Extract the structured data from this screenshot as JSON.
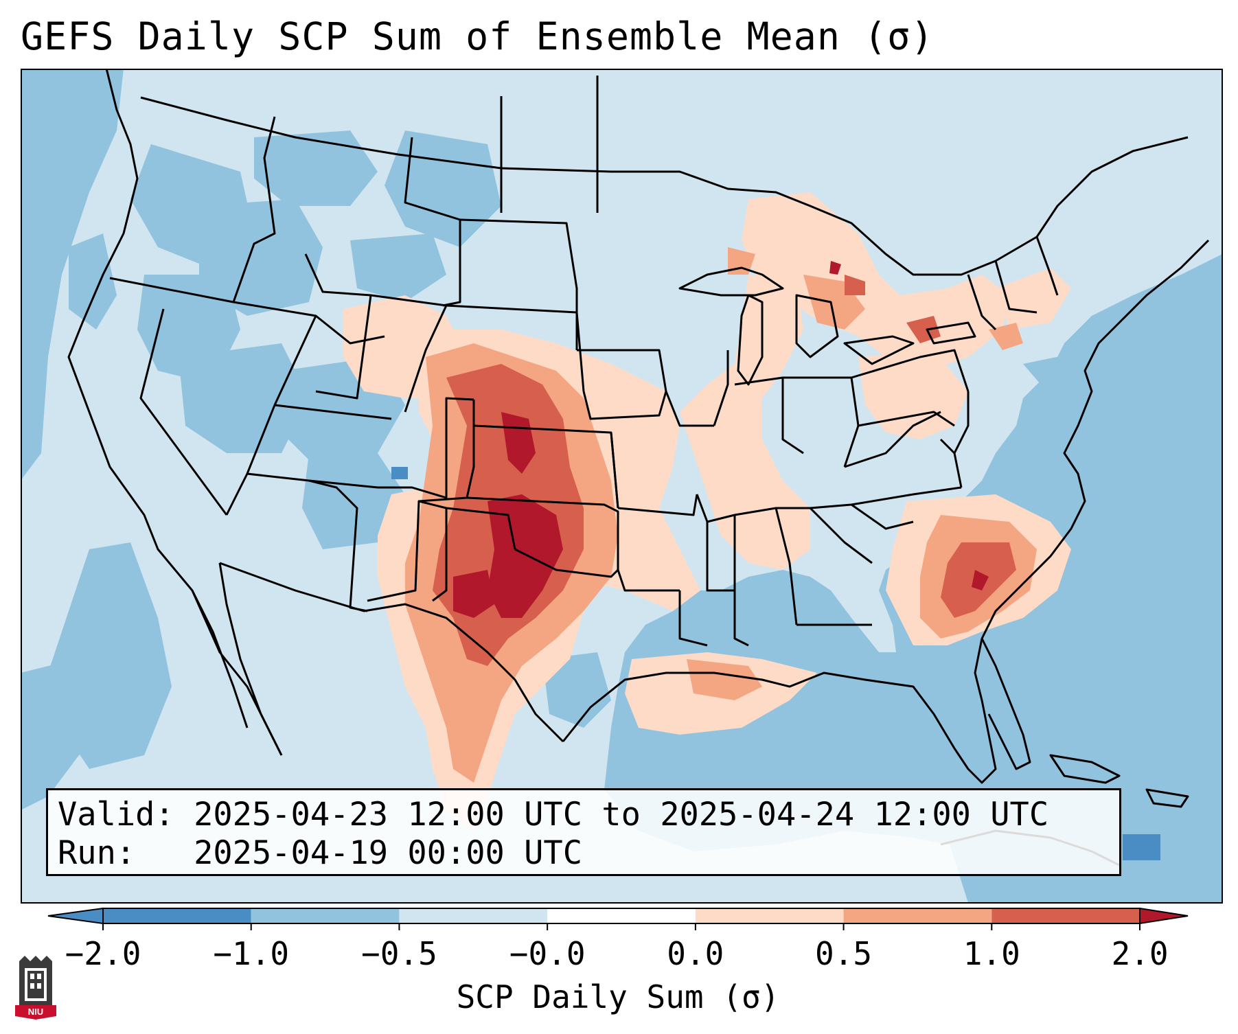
{
  "title": "GEFS Daily SCP Sum of Ensemble Mean (σ)",
  "info": {
    "valid_line": "Valid: 2025-04-23 12:00 UTC to 2025-04-24 12:00 UTC",
    "run_line": "Run:   2025-04-19 00:00 UTC"
  },
  "colorbar": {
    "label": "SCP Daily Sum (σ)",
    "ticks": [
      "−2.0",
      "−1.0",
      "−0.5",
      "−0.0",
      "0.0",
      "0.5",
      "1.0",
      "2.0"
    ],
    "colors": [
      "#4a8cc4",
      "#92c3de",
      "#d1e5f0",
      "#ffffff",
      "#fddbc7",
      "#f4a582",
      "#d6604d",
      "#b2182b"
    ],
    "extend": "both"
  },
  "logo": {
    "text": "NIU",
    "color": "#c8102e"
  },
  "field_colors": {
    "ocean": "#92c3de",
    "land": "#d1e5f0",
    "light_red": "#fddbc7",
    "mid_red": "#f4a582",
    "dark_red": "#d6604d",
    "darkest_red": "#b2182b",
    "strong_blue": "#4a8cc4"
  }
}
